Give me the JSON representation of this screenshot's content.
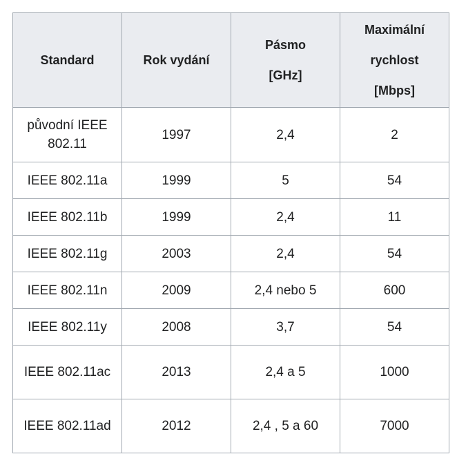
{
  "table": {
    "header": [
      [
        "Standard"
      ],
      [
        "Rok vydání"
      ],
      [
        "Pásmo",
        "[GHz]"
      ],
      [
        "Maximální",
        "rychlost",
        "[Mbps]"
      ]
    ],
    "rows": [
      [
        "původní IEEE 802.11",
        "1997",
        "2,4",
        "2"
      ],
      [
        "IEEE 802.11a",
        "1999",
        "5",
        "54"
      ],
      [
        "IEEE 802.11b",
        "1999",
        "2,4",
        "11"
      ],
      [
        "IEEE 802.11g",
        "2003",
        "2,4",
        "54"
      ],
      [
        "IEEE 802.11n",
        "2009",
        "2,4 nebo 5",
        "600"
      ],
      [
        "IEEE 802.11y",
        "2008",
        "3,7",
        "54"
      ],
      [
        "IEEE 802.11ac",
        "2013",
        "2,4 a 5",
        "1000"
      ],
      [
        "IEEE 802.11ad",
        "2012",
        "2,4 , 5 a 60",
        "7000"
      ]
    ]
  }
}
